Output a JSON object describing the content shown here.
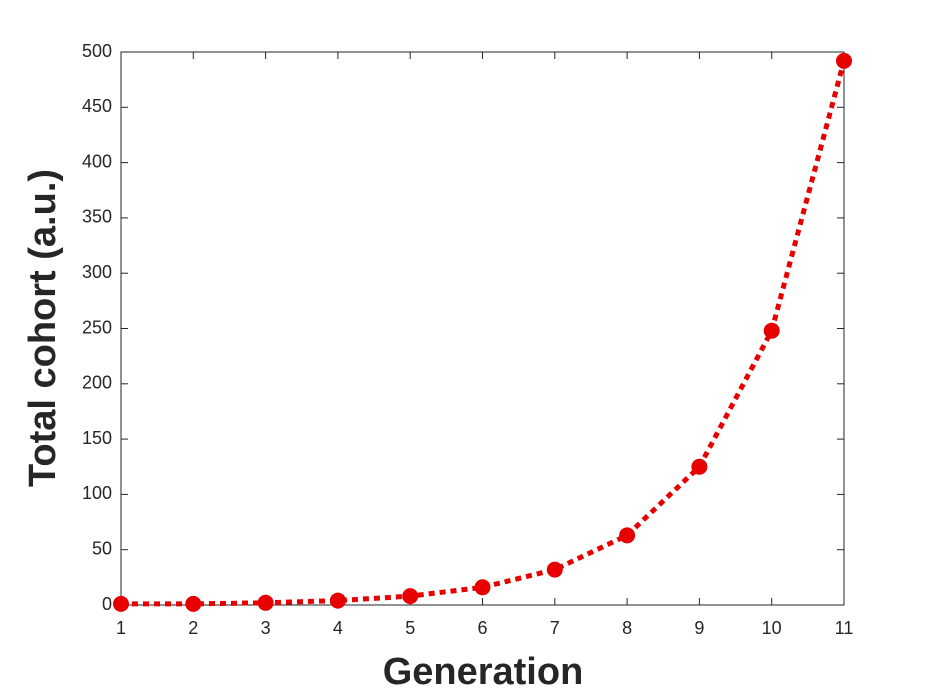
{
  "chart_data": {
    "type": "line",
    "x_label": "Generation",
    "y_label": "Total cohort (a.u.)",
    "x": [
      1,
      2,
      3,
      4,
      5,
      6,
      7,
      8,
      9,
      10,
      11
    ],
    "values": [
      1,
      1,
      2,
      4,
      8,
      16,
      32,
      63,
      125,
      248,
      492
    ],
    "color": "#e60000",
    "xlim": [
      1,
      11
    ],
    "xticks": [
      1,
      2,
      3,
      4,
      5,
      6,
      7,
      8,
      9,
      10,
      11
    ],
    "ylim": [
      0,
      500
    ],
    "yticks": [
      0,
      50,
      100,
      150,
      200,
      250,
      300,
      350,
      400,
      450,
      500
    ],
    "grid": false
  }
}
